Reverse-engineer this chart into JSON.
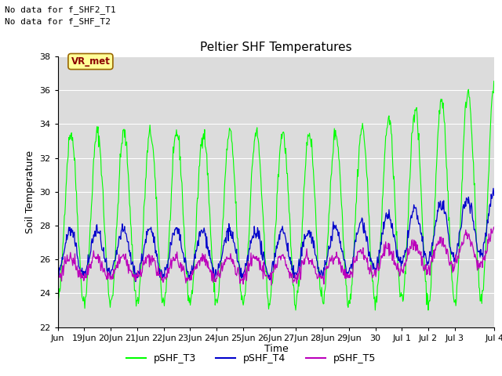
{
  "title": "Peltier SHF Temperatures",
  "ylabel": "Soil Temperature",
  "xlabel": "Time",
  "note_line1": "No data for f_SHF2_T1",
  "note_line2": "No data for f_SHF_T2",
  "vr_label": "VR_met",
  "ylim": [
    22,
    38
  ],
  "yticks": [
    22,
    24,
    26,
    28,
    30,
    32,
    34,
    36,
    38
  ],
  "xtick_labels": [
    "Jun",
    "19Jun",
    "20Jun",
    "21Jun",
    "22Jun",
    "23Jun",
    "24Jun",
    "25Jun",
    "26Jun",
    "27Jun",
    "28Jun",
    "29Jun",
    "30",
    "Jul 1",
    "Jul 2",
    "Jul 3",
    "Jul 4"
  ],
  "color_T3": "#00ff00",
  "color_T4": "#0000cc",
  "color_T5": "#bb00bb",
  "legend_labels": [
    "pSHF_T3",
    "pSHF_T4",
    "pSHF_T5"
  ],
  "bg_color": "#dcdcdc",
  "title_fontsize": 11,
  "axis_label_fontsize": 9,
  "tick_fontsize": 8
}
